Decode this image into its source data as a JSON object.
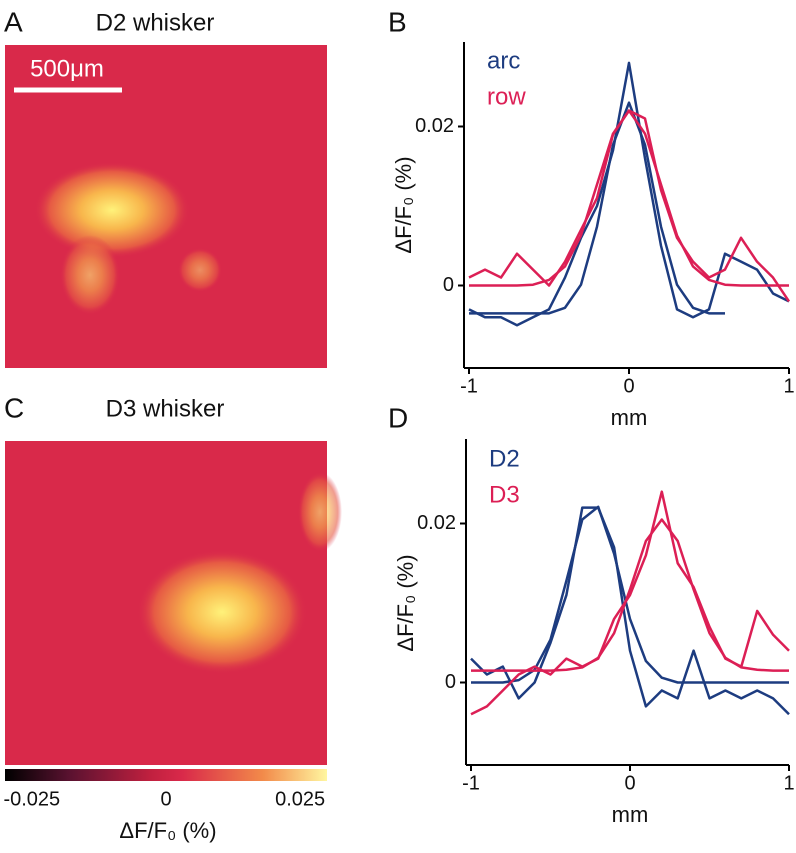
{
  "chart_data": [
    {
      "type": "image",
      "panel": "A",
      "title": "D2 whisker",
      "scale_bar_label": "500μm"
    },
    {
      "type": "line",
      "panel": "B",
      "xlabel": "mm",
      "ylabel": "ΔF/F₀ (%)",
      "x": [
        -1,
        -0.9,
        -0.8,
        -0.7,
        -0.6,
        -0.5,
        -0.4,
        -0.3,
        -0.2,
        -0.1,
        0,
        0.1,
        0.2,
        0.3,
        0.4,
        0.5,
        0.6,
        0.7,
        0.8,
        0.9,
        1
      ],
      "xlim": [
        -1,
        1
      ],
      "xticks": [
        -1,
        0,
        1
      ],
      "ylim": [
        -0.01,
        0.03
      ],
      "yticks": [
        0,
        0.02
      ],
      "legend": "upper left",
      "series": [
        {
          "name": "arc",
          "color": "#1d3c80",
          "values": [
            -0.003,
            -0.004,
            -0.004,
            -0.005,
            -0.004,
            -0.003,
            0.001,
            0.006,
            0.01,
            0.017,
            0.028,
            0.016,
            0.005,
            -0.003,
            -0.004,
            -0.003,
            0.004,
            0.003,
            0.002,
            -0.001,
            -0.002
          ]
        },
        {
          "color": "#1d3c80",
          "values": [
            -0.0035,
            -0.0035,
            -0.0035,
            -0.0035,
            -0.0035,
            -0.0035,
            -0.0028,
            0.0001,
            0.0074,
            0.0177,
            0.023,
            0.0177,
            0.0074,
            0.0001,
            -0.0028,
            -0.0035,
            -0.0035,
            null,
            null,
            null,
            null
          ]
        },
        {
          "name": "row",
          "color": "#dc1f55",
          "values": [
            0.001,
            0.002,
            0.001,
            0.004,
            0.002,
            0,
            0.003,
            0.007,
            0.011,
            0.019,
            0.022,
            0.021,
            0.012,
            0.006,
            0.003,
            0.001,
            0.002,
            0.006,
            0.003,
            0.001,
            -0.002
          ]
        },
        {
          "color": "#dc1f55",
          "values": [
            0,
            0,
            0,
            0,
            0.0001,
            0.0007,
            0.0024,
            0.0063,
            0.0127,
            0.0191,
            0.022,
            0.0191,
            0.0127,
            0.0063,
            0.0024,
            0.0007,
            0.0001,
            0,
            0,
            0,
            0
          ]
        }
      ]
    },
    {
      "type": "image",
      "panel": "C",
      "title": "D3 whisker",
      "colorbar_ticks": [
        -0.025,
        0,
        0.025
      ],
      "clim": [
        -0.03,
        0.03
      ],
      "colorbar_label": "ΔF/F₀ (%)"
    },
    {
      "type": "line",
      "panel": "D",
      "xlabel": "mm",
      "ylabel": "ΔF/F₀ (%)",
      "x": [
        -1,
        -0.9,
        -0.8,
        -0.7,
        -0.6,
        -0.5,
        -0.4,
        -0.3,
        -0.2,
        -0.1,
        0,
        0.1,
        0.2,
        0.3,
        0.4,
        0.5,
        0.6,
        0.7,
        0.8,
        0.9,
        1
      ],
      "xlim": [
        -1,
        1
      ],
      "xticks": [
        -1,
        0,
        1
      ],
      "ylim": [
        -0.01,
        0.03
      ],
      "yticks": [
        0,
        0.02
      ],
      "legend": "upper left",
      "series": [
        {
          "name": "D2",
          "color": "#1d3c80",
          "values": [
            0.003,
            0.001,
            0.002,
            -0.002,
            0,
            0.005,
            0.011,
            0.022,
            0.022,
            0.017,
            0.004,
            -0.003,
            -0.001,
            -0.002,
            0.004,
            -0.002,
            -0.001,
            -0.002,
            -0.001,
            -0.002,
            -0.004
          ]
        },
        {
          "color": "#1d3c80",
          "values": [
            0,
            0,
            0,
            0.0003,
            0.0016,
            0.0054,
            0.0128,
            0.0205,
            0.0221,
            0.0162,
            0.008,
            0.0027,
            0.0006,
            0,
            0,
            0,
            0,
            0,
            0,
            0,
            0
          ]
        },
        {
          "name": "D3",
          "color": "#dc1f55",
          "values": [
            -0.004,
            -0.003,
            -0.001,
            0.001,
            0.002,
            0.001,
            0.003,
            0.002,
            0.003,
            0.008,
            0.011,
            0.016,
            0.024,
            0.015,
            0.012,
            0.007,
            0.003,
            0.002,
            0.009,
            0.006,
            0.004
          ]
        },
        {
          "color": "#dc1f55",
          "values": [
            0.0015,
            0.0015,
            0.0015,
            0.0015,
            0.0015,
            0.0015,
            0.0016,
            0.0019,
            0.0031,
            0.0062,
            0.0117,
            0.0178,
            0.0205,
            0.0178,
            0.0117,
            0.0062,
            0.0031,
            0.0019,
            0.0016,
            0.0015,
            0.0015
          ]
        }
      ]
    }
  ]
}
